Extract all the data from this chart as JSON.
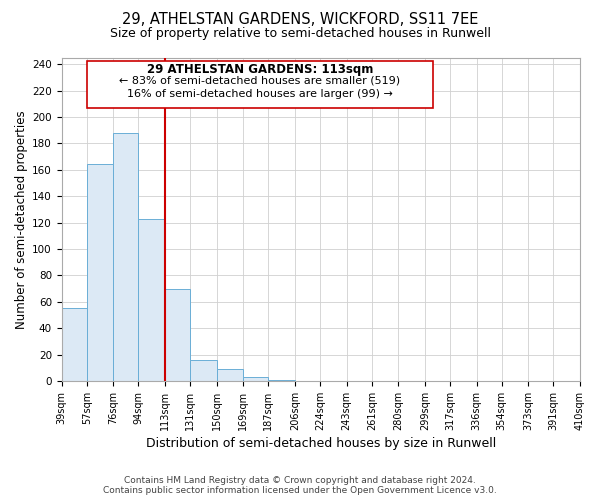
{
  "title": "29, ATHELSTAN GARDENS, WICKFORD, SS11 7EE",
  "subtitle": "Size of property relative to semi-detached houses in Runwell",
  "xlabel": "Distribution of semi-detached houses by size in Runwell",
  "ylabel": "Number of semi-detached properties",
  "bin_edges": [
    39,
    57,
    76,
    94,
    113,
    131,
    150,
    169,
    187,
    206,
    224,
    243,
    261,
    280,
    299,
    317,
    336,
    354,
    373,
    391,
    410
  ],
  "bin_counts": [
    55,
    164,
    188,
    123,
    70,
    16,
    9,
    3,
    1,
    0,
    0,
    0,
    0,
    0,
    0,
    0,
    0,
    0,
    0,
    0
  ],
  "bar_facecolor": "#dce9f5",
  "bar_edgecolor": "#6aaed6",
  "vline_x": 113,
  "vline_color": "#cc0000",
  "annotation_title": "29 ATHELSTAN GARDENS: 113sqm",
  "annotation_line1": "← 83% of semi-detached houses are smaller (519)",
  "annotation_line2": "16% of semi-detached houses are larger (99) →",
  "annotation_box_edgecolor": "#cc0000",
  "ylim": [
    0,
    245
  ],
  "xlim_min": 39,
  "xlim_max": 410,
  "tick_labels": [
    "39sqm",
    "57sqm",
    "76sqm",
    "94sqm",
    "113sqm",
    "131sqm",
    "150sqm",
    "169sqm",
    "187sqm",
    "206sqm",
    "224sqm",
    "243sqm",
    "261sqm",
    "280sqm",
    "299sqm",
    "317sqm",
    "336sqm",
    "354sqm",
    "373sqm",
    "391sqm",
    "410sqm"
  ],
  "yticks": [
    0,
    20,
    40,
    60,
    80,
    100,
    120,
    140,
    160,
    180,
    200,
    220,
    240
  ],
  "footer_line1": "Contains HM Land Registry data © Crown copyright and database right 2024.",
  "footer_line2": "Contains public sector information licensed under the Open Government Licence v3.0.",
  "background_color": "#ffffff",
  "grid_color": "#d0d0d0",
  "title_fontsize": 10.5,
  "subtitle_fontsize": 9,
  "ylabel_fontsize": 8.5,
  "xlabel_fontsize": 9,
  "tick_fontsize": 7,
  "ytick_fontsize": 7.5,
  "footer_fontsize": 6.5,
  "ann_title_fontsize": 8.5,
  "ann_text_fontsize": 8.0
}
